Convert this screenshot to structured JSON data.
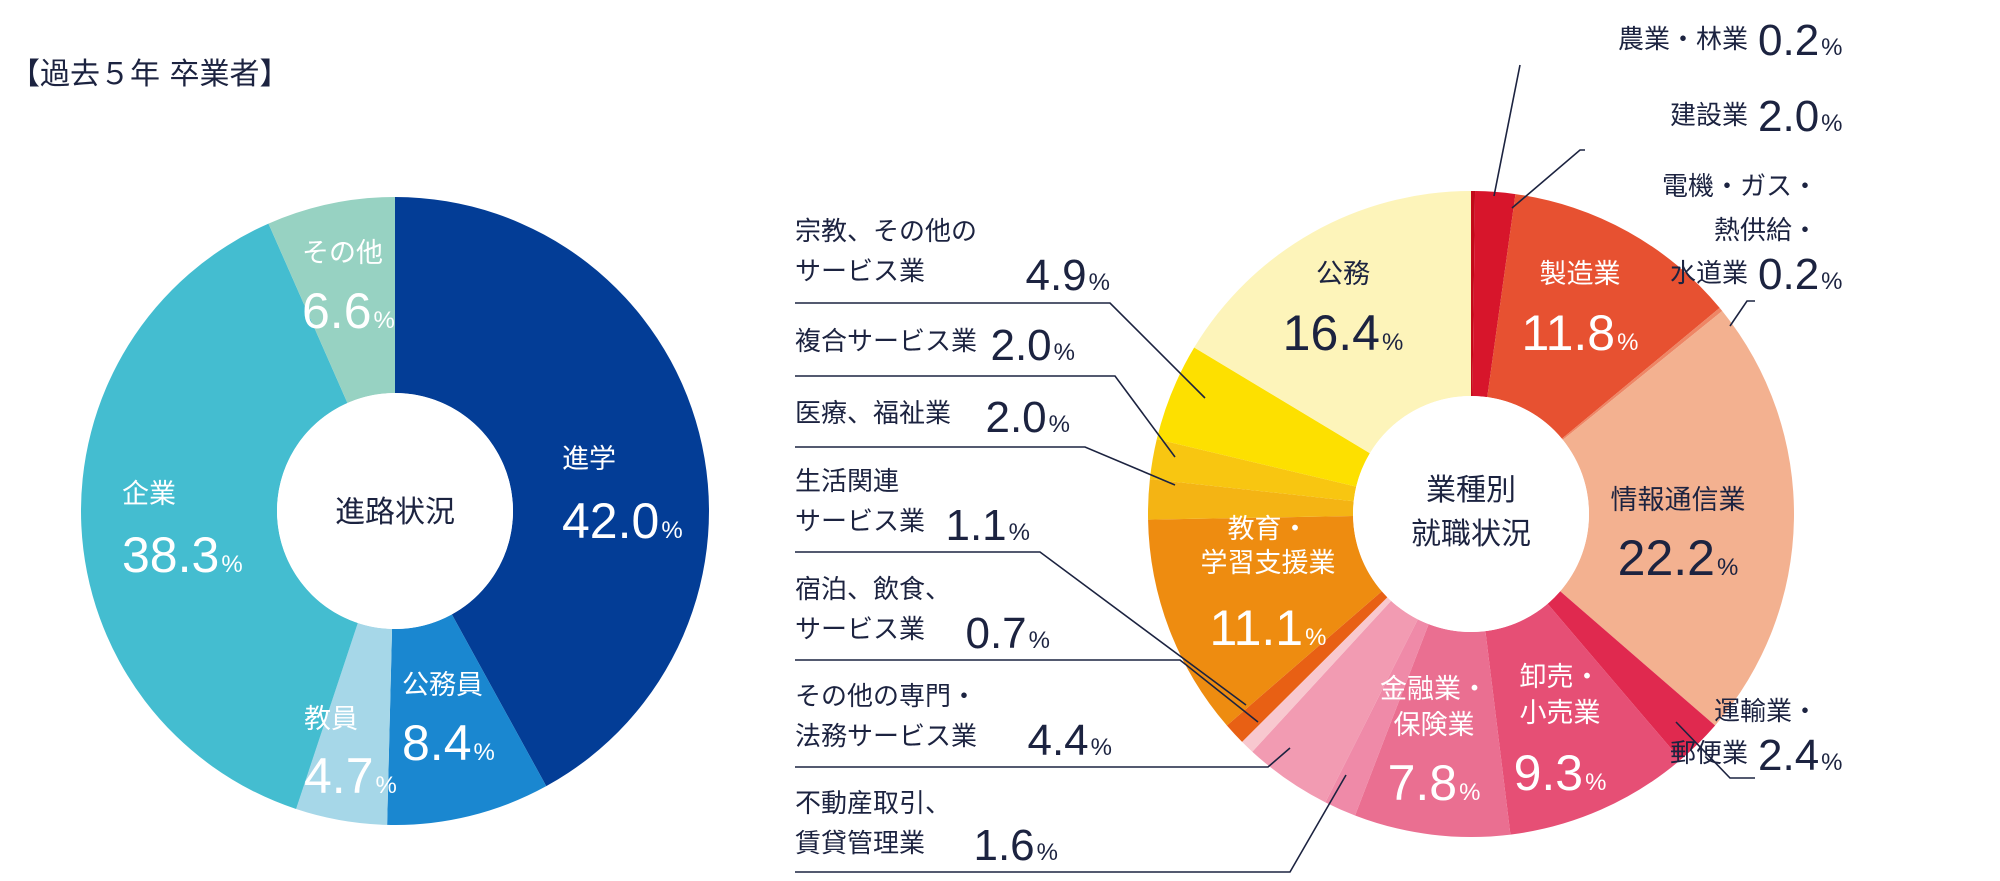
{
  "header": "【過去５年 卒業者】",
  "chart_data": [
    {
      "type": "pie",
      "title": "進路状況",
      "unit": "%",
      "slices": [
        {
          "name": "進学",
          "value": 42.0,
          "display": "42.0",
          "color": "#033d96",
          "text_color": "#ffffff"
        },
        {
          "name": "公務員",
          "value": 8.4,
          "display": "8.4",
          "color": "#1a87d0",
          "text_color": "#ffffff"
        },
        {
          "name": "教員",
          "value": 4.7,
          "display": "4.7",
          "color": "#a6d7e8",
          "text_color": "#ffffff"
        },
        {
          "name": "企業",
          "value": 38.3,
          "display": "38.3",
          "color": "#44bdd0",
          "text_color": "#ffffff"
        },
        {
          "name": "その他",
          "value": 6.6,
          "display": "6.6",
          "color": "#97d2c2",
          "text_color": "#ffffff"
        }
      ]
    },
    {
      "type": "pie",
      "title": "業種別就職状況",
      "title_lines": [
        "業種別",
        "就職状況"
      ],
      "unit": "%",
      "slices": [
        {
          "name": "農業・林業",
          "value": 0.2,
          "display": "0.2",
          "color": "#c20a1a"
        },
        {
          "name": "建設業",
          "value": 2.0,
          "display": "2.0",
          "color": "#d7152b"
        },
        {
          "name": "製造業",
          "value": 11.8,
          "display": "11.8",
          "color": "#e75131",
          "text_color": "#ffffff"
        },
        {
          "name": "電機・ガス・熱供給・水道業",
          "lines": [
            "電機・ガス・",
            "熱供給・",
            "水道業"
          ],
          "value": 0.2,
          "display": "0.2",
          "color": "#ee8665"
        },
        {
          "name": "情報通信業",
          "value": 22.2,
          "display": "22.2",
          "color": "#f3b190",
          "text_color": "#1c2340"
        },
        {
          "name": "運輸業・郵便業",
          "lines": [
            "運輸業・",
            "郵便業"
          ],
          "value": 2.4,
          "display": "2.4",
          "color": "#e0294f"
        },
        {
          "name": "卸売・小売業",
          "lines": [
            "卸売・",
            "小売業"
          ],
          "value": 9.3,
          "display": "9.3",
          "color": "#e64f75",
          "text_color": "#ffffff"
        },
        {
          "name": "金融業・保険業",
          "lines": [
            "金融業・",
            "保険業"
          ],
          "value": 7.8,
          "display": "7.8",
          "color": "#ea6f91",
          "text_color": "#ffffff"
        },
        {
          "name": "不動産取引、賃貸管理業",
          "lines": [
            "不動産取引、",
            "賃貸管理業"
          ],
          "value": 1.6,
          "display": "1.6",
          "color": "#ef8aa8"
        },
        {
          "name": "その他の専門・法務サービス業",
          "lines": [
            "その他の専門・",
            "法務サービス業"
          ],
          "value": 4.4,
          "display": "4.4",
          "color": "#f29bb2"
        },
        {
          "name": "宿泊、飲食、サービス業",
          "lines": [
            "宿泊、飲食、",
            "サービス業"
          ],
          "value": 0.7,
          "display": "0.7",
          "color": "#f8c8cf"
        },
        {
          "name": "生活関連サービス業",
          "lines": [
            "生活関連",
            "サービス業"
          ],
          "value": 1.1,
          "display": "1.1",
          "color": "#e86014"
        },
        {
          "name": "教育・学習支援業",
          "lines": [
            "教育・",
            "学習支援業"
          ],
          "value": 11.1,
          "display": "11.1",
          "color": "#ee8c10",
          "text_color": "#ffffff"
        },
        {
          "name": "医療、福祉業",
          "value": 2.0,
          "display": "2.0",
          "color": "#f4b414"
        },
        {
          "name": "複合サービス業",
          "value": 2.0,
          "display": "2.0",
          "color": "#f8c611"
        },
        {
          "name": "宗教、その他のサービス業",
          "lines": [
            "宗教、その他の",
            "サービス業"
          ],
          "value": 4.9,
          "display": "4.9",
          "color": "#fde000"
        },
        {
          "name": "公務",
          "value": 16.4,
          "display": "16.4",
          "color": "#fdf4ba",
          "text_color": "#1c2340"
        }
      ]
    }
  ]
}
